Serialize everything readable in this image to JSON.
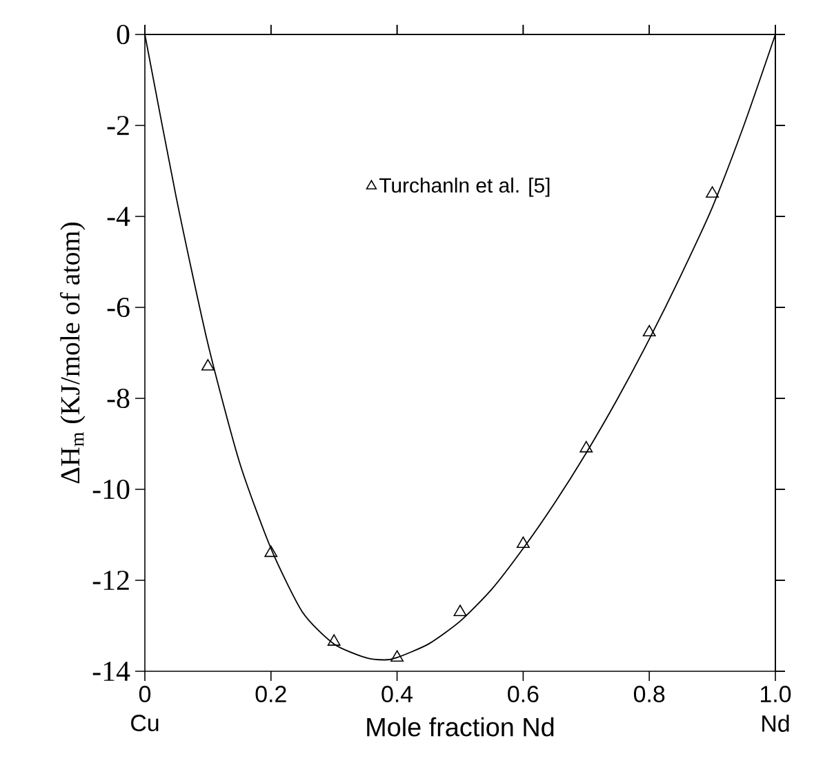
{
  "chart_data": {
    "type": "scatter",
    "xlabel": "Mole fraction Nd",
    "ylabel": "ΔH$_{m}$ (KJ/mole of atom)",
    "xlim": [
      0,
      1
    ],
    "ylim": [
      -14,
      0
    ],
    "xticks": [
      0,
      0.2,
      0.4,
      0.6,
      {
        "value": 0.8,
        "label": "0.8"
      },
      {
        "value": 1,
        "label": "1.0"
      }
    ],
    "yticks": [
      -14,
      -12,
      -10,
      -8,
      -6,
      -4,
      -2,
      0
    ],
    "legend": "top",
    "grid": false,
    "marker": "triangle",
    "annotations": [
      "Cu",
      "Nd"
    ],
    "series": [
      {
        "type": "line",
        "color": "#000000",
        "x": [
          0,
          0.05,
          0.1,
          0.15,
          0.2,
          0.25,
          0.3,
          0.35,
          0.38,
          0.4,
          0.45,
          0.5,
          0.55,
          0.6,
          0.65,
          0.7,
          0.75,
          0.8,
          0.85,
          0.9,
          0.95,
          1.0
        ],
        "values": [
          0,
          -3.6,
          -6.8,
          -9.4,
          -11.3,
          -12.7,
          -13.4,
          -13.7,
          -13.75,
          -13.7,
          -13.4,
          -12.9,
          -12.2,
          -11.3,
          -10.3,
          -9.2,
          -8.0,
          -6.7,
          -5.3,
          -3.8,
          -2.0,
          0
        ],
        "marker": "none"
      },
      {
        "type": "scatter",
        "name": "Turchanln et al. [5]",
        "color": "#000000",
        "x": [
          0.1,
          0.2,
          0.3,
          0.4,
          0.5,
          0.6,
          0.7,
          0.8,
          0.9
        ],
        "values": [
          -7.3,
          -11.4,
          -13.35,
          -13.7,
          -12.7,
          -11.2,
          -9.1,
          -6.55,
          -3.5
        ]
      }
    ]
  }
}
